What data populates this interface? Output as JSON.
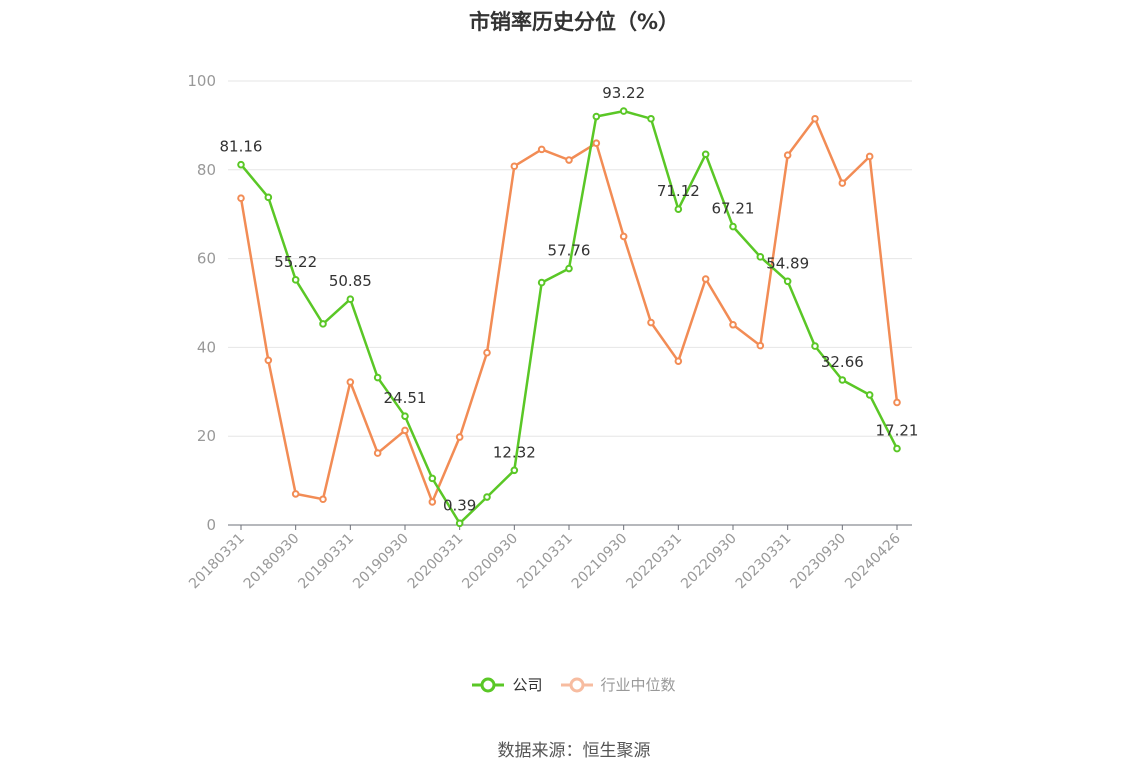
{
  "title": "市销率历史分位（%）",
  "source": "数据来源：恒生聚源",
  "chart_data": {
    "type": "line",
    "title": "市销率历史分位（%）",
    "xlabel": "",
    "ylabel": "",
    "ylim": [
      0,
      100
    ],
    "yticks": [
      0,
      20,
      40,
      60,
      80,
      100
    ],
    "grid": true,
    "legend_position": "bottom",
    "x": [
      "20180331",
      "20180630",
      "20180930",
      "20181231",
      "20190331",
      "20190630",
      "20190930",
      "20191231",
      "20200331",
      "20200630",
      "20200930",
      "20201231",
      "20210331",
      "20210630",
      "20210930",
      "20211231",
      "20220331",
      "20220630",
      "20220930",
      "20221231",
      "20230331",
      "20230630",
      "20230930",
      "20231231",
      "20240426"
    ],
    "x_tick_labels": [
      "20180331",
      "20180930",
      "20190331",
      "20190930",
      "20200331",
      "20200930",
      "20210331",
      "20210930",
      "20220331",
      "20220930",
      "20230331",
      "20230930",
      "20240426"
    ],
    "series": [
      {
        "name": "公司",
        "color": "#5ac726",
        "values": [
          81.16,
          73.8,
          55.22,
          45.3,
          50.85,
          33.2,
          24.51,
          10.5,
          0.39,
          6.3,
          12.32,
          54.6,
          57.76,
          92.0,
          93.22,
          91.5,
          71.12,
          83.5,
          67.21,
          60.4,
          54.89,
          40.3,
          32.66,
          29.3,
          17.21
        ],
        "labels": [
          "81.16",
          "",
          "55.22",
          "",
          "50.85",
          "",
          "24.51",
          "",
          "0.39",
          "",
          "12.32",
          "",
          "57.76",
          "",
          "93.22",
          "",
          "71.12",
          "",
          "67.21",
          "",
          "54.89",
          "",
          "32.66",
          "",
          "17.21"
        ]
      },
      {
        "name": "行业中位数",
        "color": "#f28c55",
        "values": [
          73.6,
          37.1,
          7.0,
          5.8,
          32.2,
          16.2,
          21.3,
          5.2,
          19.8,
          38.8,
          80.8,
          84.6,
          82.2,
          86.0,
          65.0,
          45.6,
          36.9,
          55.4,
          45.1,
          40.4,
          83.3,
          91.5,
          77.0,
          83.0,
          27.6
        ]
      }
    ]
  }
}
